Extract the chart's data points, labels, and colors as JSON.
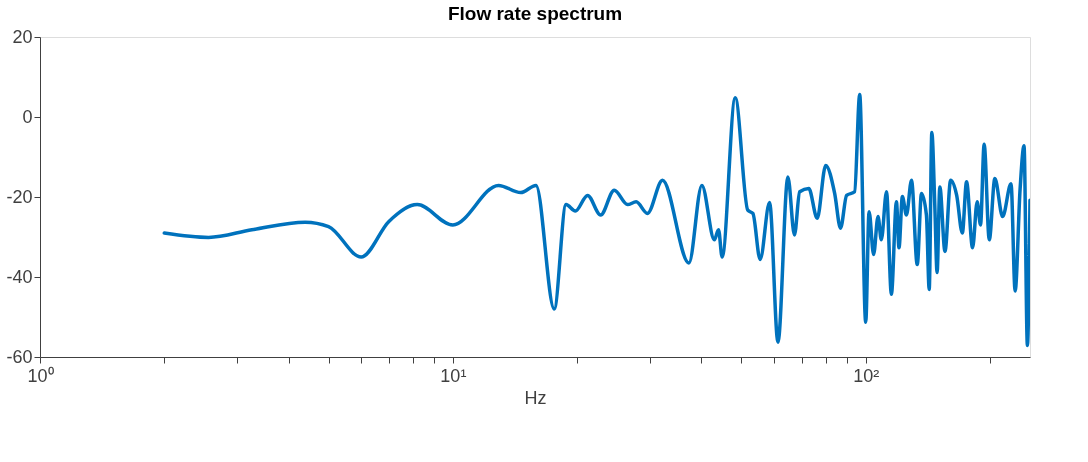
{
  "chart_data": {
    "type": "line",
    "title": "Flow rate spectrum",
    "xlabel": "Hz",
    "log": "x",
    "grid": false,
    "marker": "none",
    "line_style": "solid",
    "xlim": [
      1,
      250
    ],
    "xticks": [
      {
        "value": 1,
        "label": "10⁰"
      },
      {
        "value": 2,
        "label": null
      },
      {
        "value": 3,
        "label": null
      },
      {
        "value": 4,
        "label": null
      },
      {
        "value": 5,
        "label": null
      },
      {
        "value": 6,
        "label": null
      },
      {
        "value": 7,
        "label": null
      },
      {
        "value": 8,
        "label": null
      },
      {
        "value": 9,
        "label": null
      },
      {
        "value": 10,
        "label": "10¹"
      },
      {
        "value": 20,
        "label": null
      },
      {
        "value": 30,
        "label": null
      },
      {
        "value": 40,
        "label": null
      },
      {
        "value": 50,
        "label": null
      },
      {
        "value": 60,
        "label": null
      },
      {
        "value": 70,
        "label": null
      },
      {
        "value": 80,
        "label": null
      },
      {
        "value": 90,
        "label": null
      },
      {
        "value": 100,
        "label": "10²"
      },
      {
        "value": 200,
        "label": null
      }
    ],
    "ylim": [
      -60,
      20
    ],
    "yticks": [
      -60,
      -40,
      -20,
      0,
      20
    ],
    "series": [
      {
        "color": "#0072bd",
        "x": [
          2.0,
          2.56,
          3.26,
          4.39,
          5.0,
          6.0,
          7.0,
          8.2,
          10.0,
          12.9,
          14.6,
          15.9,
          17.6,
          18.8,
          19.8,
          21.2,
          22.8,
          24.6,
          26.5,
          27.8,
          29.6,
          32.2,
          37.3,
          40.1,
          43.0,
          44.0,
          44.9,
          48.3,
          51.8,
          53.3,
          55.5,
          58.5,
          61.3,
          64.8,
          67.2,
          69.2,
          72.8,
          76.3,
          80.0,
          84.1,
          86.9,
          89.9,
          94.0,
          96.7,
          100,
          101.9,
          104.5,
          107.1,
          109.1,
          112.3,
          115.4,
          118.7,
          120.4,
          122.7,
          125.5,
          129.1,
          133.3,
          136.5,
          140.3,
          142.5,
          144.6,
          147.0,
          148.9,
          151.2,
          155.6,
          160.6,
          166.1,
          171.4,
          175.5,
          181.5,
          186.2,
          189.7,
          193.6,
          199.2,
          205.5,
          214.6,
          224.9,
          230.1,
          236.6,
          241.8,
          246.4,
          250
        ],
        "values": [
          -29.0,
          -30.1,
          -28.2,
          -26.3,
          -27.4,
          -35.0,
          -26.1,
          -21.9,
          -27.0,
          -17.1,
          -18.9,
          -17.1,
          -48.0,
          -21.9,
          -23.5,
          -19.6,
          -24.5,
          -18.3,
          -21.9,
          -21.2,
          -24.1,
          -15.8,
          -36.5,
          -17.1,
          -30.7,
          -28.2,
          -35.0,
          4.8,
          -23.3,
          -24.1,
          -35.6,
          -21.4,
          -56.3,
          -15.0,
          -29.5,
          -18.7,
          -17.9,
          -25.3,
          -12.1,
          -19.1,
          -27.8,
          -19.6,
          -18.7,
          5.6,
          -51.3,
          -23.7,
          -34.4,
          -24.9,
          -30.7,
          -18.7,
          -44.3,
          -21.2,
          -32.7,
          -19.9,
          -24.5,
          -15.8,
          -36.9,
          -19.1,
          -24.5,
          -43.1,
          -3.9,
          -22.0,
          -38.9,
          -17.5,
          -33.6,
          -15.8,
          -19.6,
          -29.0,
          -16.2,
          -32.7,
          -21.2,
          -27.0,
          -6.8,
          -30.7,
          -15.4,
          -24.9,
          -16.7,
          -43.5,
          -17.9,
          -7.2,
          -57.1,
          -20.8
        ]
      }
    ]
  }
}
